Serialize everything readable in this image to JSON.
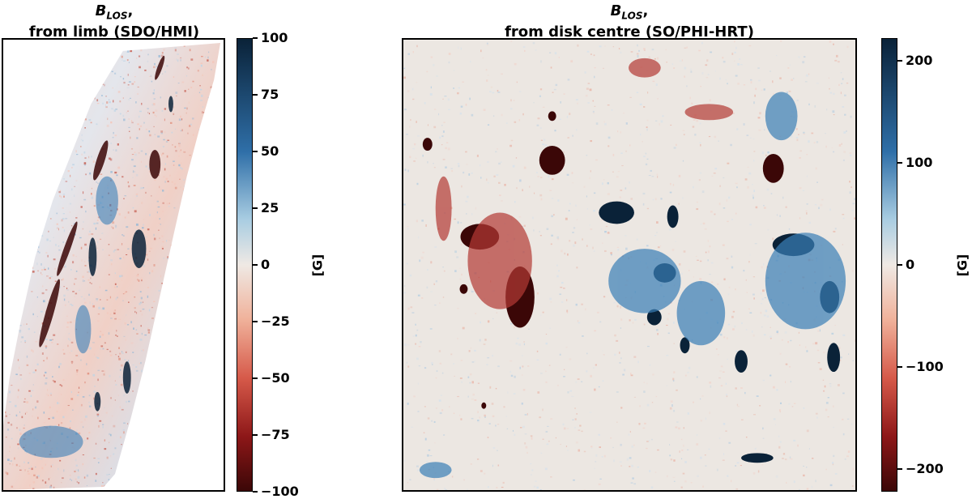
{
  "panels": [
    {
      "title_symbol": "B",
      "title_sub": "LOS",
      "title_suffix": ",",
      "title_line2": "from limb (SDO/HMI)",
      "colorbar": {
        "ticks": [
          "100",
          "75",
          "50",
          "25",
          "0",
          "−25",
          "−50",
          "−75",
          "−100"
        ],
        "unit": "[G]"
      }
    },
    {
      "title_symbol": "B",
      "title_sub": "LOS",
      "title_suffix": ",",
      "title_line2": "from disk centre (SO/PHI-HRT)",
      "colorbar": {
        "ticks": [
          "200",
          "100",
          "0",
          "−100",
          "−200"
        ],
        "unit": "[G]"
      }
    }
  ],
  "colormap": {
    "positive": "#0a2238",
    "positive_mid": "#3a7fb7",
    "neutral": "#ede6e0",
    "negative_mid": "#d65a4a",
    "negative": "#3b0707"
  }
}
